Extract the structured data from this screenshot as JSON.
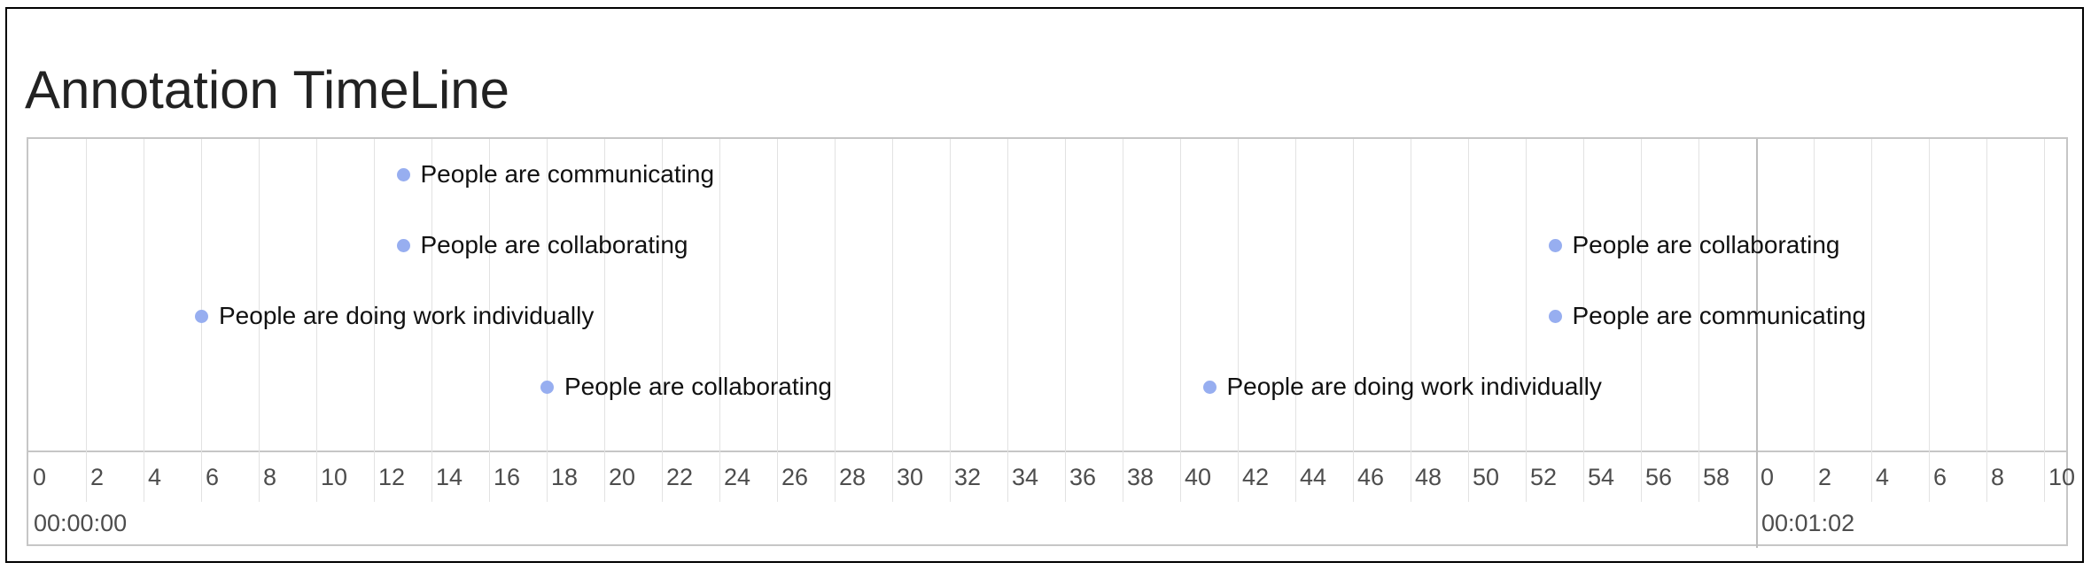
{
  "page": {
    "title": "Annotation TimeLine"
  },
  "timeline": {
    "ticks": [
      "0",
      "2",
      "4",
      "6",
      "8",
      "10",
      "12",
      "14",
      "16",
      "18",
      "20",
      "22",
      "24",
      "26",
      "28",
      "30",
      "32",
      "34",
      "36",
      "38",
      "40",
      "42",
      "44",
      "46",
      "48",
      "50",
      "52",
      "54",
      "56",
      "58",
      "0",
      "2",
      "4",
      "6",
      "8",
      "10"
    ],
    "major_labels": [
      "00:00:00",
      "00:01:02"
    ],
    "events": [
      {
        "time": 13.0,
        "label": "People are communicating"
      },
      {
        "time": 13.0,
        "label": "People are collaborating"
      },
      {
        "time": 6.0,
        "label": "People are doing work individually"
      },
      {
        "time": 18.0,
        "label": "People are collaborating"
      },
      {
        "time": 41.0,
        "label": "People are doing work individually"
      },
      {
        "time": 53.0,
        "label": "People are collaborating"
      },
      {
        "time": 53.0,
        "label": "People are communicating"
      }
    ],
    "colors": {
      "dot": "#97aef0",
      "grid": "#e2e2e2",
      "border": "#c6c6c6"
    }
  }
}
